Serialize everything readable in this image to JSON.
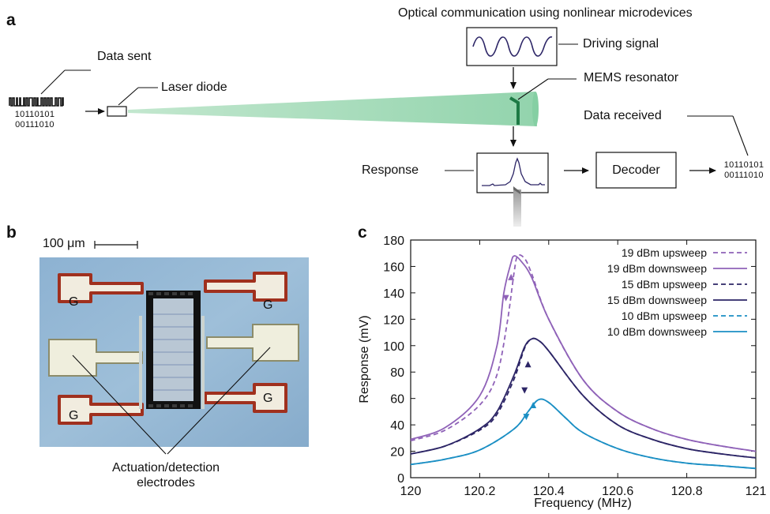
{
  "panel_a": {
    "letter": "a",
    "title": "Optical communication using nonlinear microdevices",
    "data_sent": "Data sent",
    "bits_sent": [
      "10110101",
      "00111010"
    ],
    "laser": "Laser diode",
    "driving": "Driving signal",
    "mems": "MEMS resonator",
    "data_received": "Data received",
    "response": "Response",
    "decoder": "Decoder",
    "bits_received": [
      "10110101",
      "00111010"
    ],
    "beam_color": "#8fd1aa"
  },
  "panel_b": {
    "letter": "b",
    "scale": "100 μm",
    "ground_label": "G",
    "caption_line1": "Actuation/detection",
    "caption_line2": "electrodes"
  },
  "panel_c": {
    "letter": "c"
  },
  "chart_data": {
    "type": "line",
    "xlabel": "Frequency (MHz)",
    "ylabel": "Response (mV)",
    "xlim": [
      120,
      121
    ],
    "ylim": [
      0,
      180
    ],
    "xticks": [
      "120",
      "120.2",
      "120.4",
      "120.6",
      "120.8",
      "121"
    ],
    "yticks": [
      "0",
      "20",
      "40",
      "60",
      "80",
      "100",
      "120",
      "140",
      "160",
      "180"
    ],
    "legend_position": "top-right",
    "series": [
      {
        "name": "19 dBm upsweep",
        "style": "dashed",
        "color": "#8f62b8",
        "x": [
          120,
          120.1,
          120.2,
          120.25,
          120.28,
          120.3,
          120.31,
          120.33,
          120.35,
          120.4,
          120.5,
          120.6,
          120.7,
          120.8,
          120.9,
          121
        ],
        "y": [
          28,
          36,
          55,
          78,
          118,
          156,
          168,
          166,
          155,
          120,
          74,
          50,
          37,
          29,
          24,
          20
        ]
      },
      {
        "name": "19 dBm downsweep",
        "style": "solid",
        "color": "#8f62b8",
        "x": [
          120,
          120.1,
          120.2,
          120.25,
          120.27,
          120.29,
          120.3,
          120.32,
          120.35,
          120.4,
          120.5,
          120.6,
          120.7,
          120.8,
          120.9,
          121
        ],
        "y": [
          29,
          38,
          62,
          100,
          140,
          162,
          168,
          164,
          152,
          120,
          74,
          50,
          37,
          29,
          24,
          20
        ]
      },
      {
        "name": "15 dBm upsweep",
        "style": "dashed",
        "color": "#2c2566",
        "x": [
          120,
          120.1,
          120.2,
          120.25,
          120.3,
          120.33,
          120.35,
          120.37,
          120.4,
          120.5,
          120.6,
          120.7,
          120.8,
          120.9,
          121
        ],
        "y": [
          18,
          24,
          36,
          48,
          75,
          98,
          105,
          104,
          96,
          62,
          40,
          29,
          22,
          18,
          15
        ]
      },
      {
        "name": "15 dBm downsweep",
        "style": "solid",
        "color": "#2c2566",
        "x": [
          120,
          120.1,
          120.2,
          120.25,
          120.3,
          120.33,
          120.35,
          120.37,
          120.4,
          120.5,
          120.6,
          120.7,
          120.8,
          120.9,
          121
        ],
        "y": [
          18,
          24,
          37,
          50,
          78,
          99,
          105,
          104,
          96,
          62,
          40,
          29,
          22,
          18,
          15
        ]
      },
      {
        "name": "10 dBm upsweep",
        "style": "dashed",
        "color": "#1b8fc4",
        "x": [
          120,
          120.1,
          120.2,
          120.3,
          120.34,
          120.37,
          120.4,
          120.45,
          120.5,
          120.6,
          120.7,
          120.8,
          120.9,
          121
        ],
        "y": [
          10,
          14,
          21,
          37,
          50,
          59,
          57,
          45,
          34,
          22,
          15,
          11,
          9,
          7
        ]
      },
      {
        "name": "10 dBm downsweep",
        "style": "solid",
        "color": "#1b8fc4",
        "x": [
          120,
          120.1,
          120.2,
          120.3,
          120.34,
          120.37,
          120.4,
          120.45,
          120.5,
          120.6,
          120.7,
          120.8,
          120.9,
          121
        ],
        "y": [
          10,
          14,
          21,
          37,
          50,
          59,
          57,
          45,
          34,
          22,
          15,
          11,
          9,
          7
        ]
      }
    ]
  }
}
